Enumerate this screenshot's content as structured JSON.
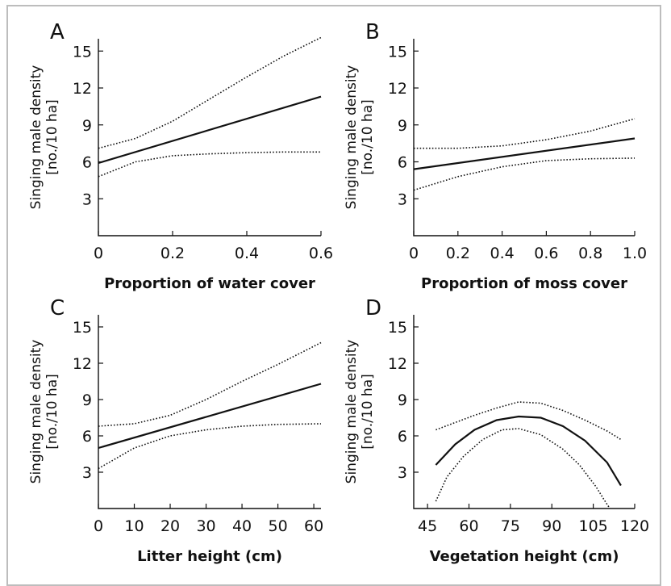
{
  "chart_data": [
    {
      "type": "line",
      "panel_label": "A",
      "xlabel": "Proportion of water cover",
      "ylabel": [
        "Singing male density",
        "[no./10 ha]"
      ],
      "xlim": [
        0,
        0.6
      ],
      "ylim": [
        0,
        16
      ],
      "xticks": [
        0,
        0.2,
        0.4,
        0.6
      ],
      "xtick_labels": [
        "0",
        "0.2",
        "0.4",
        "0.6"
      ],
      "yticks": [
        3,
        6,
        9,
        12,
        15
      ],
      "ytick_labels": [
        "3",
        "6",
        "9",
        "12",
        "15"
      ],
      "series": [
        {
          "style": "solid",
          "x": [
            0,
            0.6
          ],
          "y": [
            5.9,
            11.3
          ]
        },
        {
          "style": "dotted",
          "x": [
            0,
            0.1,
            0.2,
            0.3,
            0.4,
            0.5,
            0.6
          ],
          "y": [
            7.1,
            7.9,
            9.3,
            11.1,
            12.9,
            14.6,
            16.1
          ]
        },
        {
          "style": "dotted",
          "x": [
            0,
            0.1,
            0.2,
            0.3,
            0.4,
            0.5,
            0.6
          ],
          "y": [
            4.8,
            6.0,
            6.5,
            6.65,
            6.75,
            6.8,
            6.8
          ]
        }
      ]
    },
    {
      "type": "line",
      "panel_label": "B",
      "xlabel": "Proportion of moss cover",
      "ylabel": [
        "Singing male density",
        "[no./10 ha]"
      ],
      "xlim": [
        0,
        1.0
      ],
      "ylim": [
        0,
        16
      ],
      "xticks": [
        0,
        0.2,
        0.4,
        0.6,
        0.8,
        1.0
      ],
      "xtick_labels": [
        "0",
        "0.2",
        "0.4",
        "0.6",
        "0.8",
        "1.0"
      ],
      "yticks": [
        3,
        6,
        9,
        12,
        15
      ],
      "ytick_labels": [
        "3",
        "6",
        "9",
        "12",
        "15"
      ],
      "series": [
        {
          "style": "solid",
          "x": [
            0,
            1.0
          ],
          "y": [
            5.4,
            7.9
          ]
        },
        {
          "style": "dotted",
          "x": [
            0,
            0.2,
            0.4,
            0.6,
            0.8,
            1.0
          ],
          "y": [
            7.1,
            7.1,
            7.3,
            7.8,
            8.5,
            9.5
          ]
        },
        {
          "style": "dotted",
          "x": [
            0,
            0.2,
            0.4,
            0.6,
            0.8,
            1.0
          ],
          "y": [
            3.7,
            4.8,
            5.6,
            6.1,
            6.25,
            6.3
          ]
        }
      ]
    },
    {
      "type": "line",
      "panel_label": "C",
      "xlabel": "Litter height (cm)",
      "ylabel": [
        "Singing male density",
        "[no./10 ha]"
      ],
      "xlim": [
        0,
        62
      ],
      "ylim": [
        0,
        16
      ],
      "xticks": [
        0,
        10,
        20,
        30,
        40,
        50,
        60
      ],
      "xtick_labels": [
        "0",
        "10",
        "20",
        "30",
        "40",
        "50",
        "60"
      ],
      "yticks": [
        3,
        6,
        9,
        12,
        15
      ],
      "ytick_labels": [
        "3",
        "6",
        "9",
        "12",
        "15"
      ],
      "series": [
        {
          "style": "solid",
          "x": [
            0,
            62
          ],
          "y": [
            5.0,
            10.3
          ]
        },
        {
          "style": "dotted",
          "x": [
            0,
            10,
            20,
            30,
            40,
            50,
            62
          ],
          "y": [
            6.8,
            7.0,
            7.7,
            9.0,
            10.5,
            11.9,
            13.7
          ]
        },
        {
          "style": "dotted",
          "x": [
            0,
            10,
            20,
            30,
            40,
            50,
            62
          ],
          "y": [
            3.3,
            5.0,
            6.0,
            6.5,
            6.8,
            6.95,
            7.0
          ]
        }
      ]
    },
    {
      "type": "line",
      "panel_label": "D",
      "xlabel": "Vegetation height (cm)",
      "ylabel": [
        "Singing male density",
        "[no./10 ha]"
      ],
      "xlim": [
        40,
        120
      ],
      "ylim": [
        0,
        16
      ],
      "xticks": [
        45,
        60,
        75,
        90,
        105,
        120
      ],
      "xtick_labels": [
        "45",
        "60",
        "75",
        "90",
        "105",
        "120"
      ],
      "yticks": [
        3,
        6,
        9,
        12,
        15
      ],
      "ytick_labels": [
        "3",
        "6",
        "9",
        "12",
        "15"
      ],
      "series": [
        {
          "style": "solid",
          "x": [
            48,
            55,
            62,
            70,
            78,
            86,
            94,
            102,
            110,
            115
          ],
          "y": [
            3.6,
            5.3,
            6.5,
            7.3,
            7.6,
            7.5,
            6.8,
            5.6,
            3.8,
            1.9
          ]
        },
        {
          "style": "dotted",
          "x": [
            48,
            55,
            62,
            70,
            78,
            86,
            94,
            102,
            110,
            115
          ],
          "y": [
            6.5,
            7.1,
            7.7,
            8.3,
            8.8,
            8.7,
            8.1,
            7.3,
            6.4,
            5.7
          ]
        },
        {
          "style": "dotted",
          "x": [
            48,
            52,
            58,
            65,
            72,
            78,
            86,
            94,
            100,
            106,
            109,
            111
          ],
          "y": [
            0.6,
            2.6,
            4.3,
            5.7,
            6.5,
            6.6,
            6.1,
            4.9,
            3.6,
            1.8,
            0.7,
            0.0
          ]
        }
      ]
    }
  ]
}
